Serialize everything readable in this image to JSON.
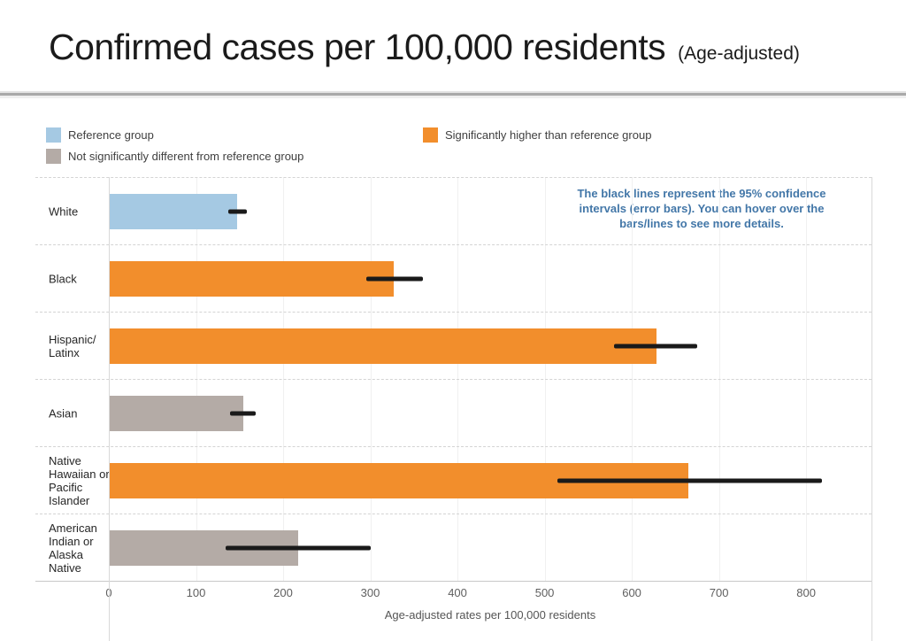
{
  "header": {
    "title": "Confirmed cases per 100,000 residents",
    "subtitle": "(Age-adjusted)"
  },
  "legend": [
    {
      "id": "reference",
      "label": "Reference group",
      "color": "#A5C9E3"
    },
    {
      "id": "not_significant",
      "label": "Not significantly different from reference group",
      "color": "#B4ABA6"
    },
    {
      "id": "higher",
      "label": "Significantly higher than reference group",
      "color": "#F28E2C"
    }
  ],
  "annotation": {
    "text": "The black lines represent the 95% confidence intervals (error bars). You can hover over the bars/lines to see more details.",
    "color": "#4377A8"
  },
  "chart_data": {
    "type": "bar",
    "orientation": "horizontal",
    "title": "Confirmed cases per 100,000 residents (Age-adjusted)",
    "xlabel": "Age-adjusted rates per 100,000 residents",
    "ylabel": "",
    "x_ticks": [
      0,
      100,
      200,
      300,
      400,
      500,
      600,
      700,
      800
    ],
    "xlim": [
      0,
      875
    ],
    "grid": "vertical-light, dashed row separators",
    "legend_position": "top",
    "error_bar_color": "#1a1a1a",
    "rows": [
      {
        "category": "White",
        "value": 147,
        "ci_low": 137,
        "ci_high": 158,
        "group": "reference"
      },
      {
        "category": "Black",
        "value": 327,
        "ci_low": 295,
        "ci_high": 360,
        "group": "higher"
      },
      {
        "category": "Hispanic/ Latinx",
        "value": 628,
        "ci_low": 580,
        "ci_high": 675,
        "group": "higher"
      },
      {
        "category": "Asian",
        "value": 154,
        "ci_low": 139,
        "ci_high": 169,
        "group": "not_significant"
      },
      {
        "category": "Native Hawaiian or Pacific Islander",
        "value": 665,
        "ci_low": 515,
        "ci_high": 818,
        "group": "higher"
      },
      {
        "category": "American Indian or Alaska Native",
        "value": 217,
        "ci_low": 134,
        "ci_high": 300,
        "group": "not_significant"
      }
    ]
  }
}
